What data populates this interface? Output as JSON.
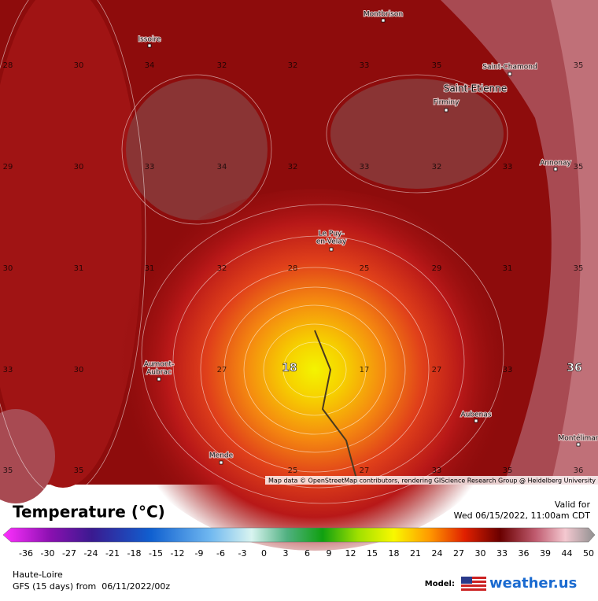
{
  "map": {
    "cities": [
      {
        "lines": [
          "Montbrison"
        ]
      },
      {
        "lines": [
          "Issoire"
        ]
      },
      {
        "lines": [
          "Saint-Chamond"
        ]
      },
      {
        "lines": [
          "Saint-Etienne"
        ]
      },
      {
        "lines": [
          "Firminy"
        ]
      },
      {
        "lines": [
          "Annonay"
        ]
      },
      {
        "lines": [
          "Le Puy-",
          "en-Velay"
        ]
      },
      {
        "lines": [
          "Aumont-",
          "Aubrac"
        ]
      },
      {
        "lines": [
          "Aubenas"
        ]
      },
      {
        "lines": [
          "Montélimar"
        ]
      },
      {
        "lines": [
          "Mende"
        ]
      }
    ],
    "contour_labels": [
      "28",
      "30",
      "34",
      "32",
      "32",
      "33",
      "35",
      "35",
      "29",
      "30",
      "33",
      "34",
      "32",
      "33",
      "32",
      "33",
      "35",
      "30",
      "31",
      "31",
      "32",
      "28",
      "25",
      "29",
      "31",
      "35",
      "33",
      "30",
      "27",
      "18",
      "17",
      "27",
      "33",
      "36",
      "35",
      "35",
      "25",
      "27",
      "33",
      "35",
      "36"
    ],
    "attribution": "Map data © OpenStreetMap contributors, rendering GIScience Research Group @ Heidelberg University"
  },
  "legend": {
    "title": "Temperature (°C)",
    "valid_label": "Valid for",
    "valid_time": "Wed 06/15/2022, 11:00am CDT",
    "ticks": [
      "-36",
      "-30",
      "-27",
      "-24",
      "-21",
      "-18",
      "-15",
      "-12",
      "-9",
      "-6",
      "-3",
      "0",
      "3",
      "6",
      "9",
      "12",
      "15",
      "18",
      "21",
      "24",
      "27",
      "30",
      "33",
      "36",
      "39",
      "44",
      "50"
    ]
  },
  "footer": {
    "region": "Haute-Loire",
    "model_run": "GFS (15 days) from  06/11/2022/00z",
    "model_label": "Model:",
    "brand": "weather.us"
  }
}
